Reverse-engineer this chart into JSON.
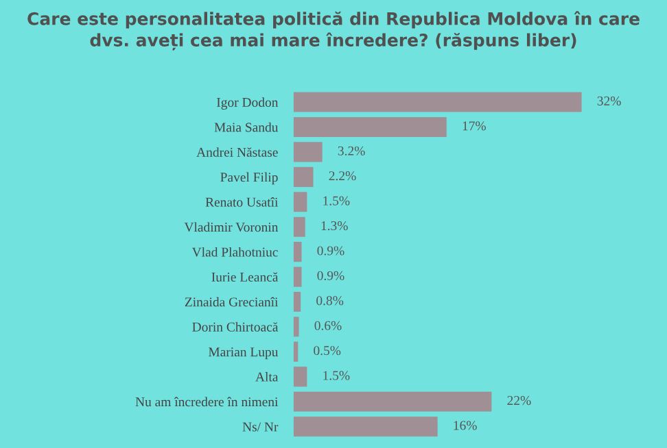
{
  "chart_data": {
    "type": "bar",
    "orientation": "horizontal",
    "title": "Care este personalitatea politică din Republica Moldova în care\ndvs. aveți cea mai mare încredere? (răspuns liber)",
    "categories": [
      "Igor Dodon",
      "Maia Sandu",
      "Andrei Năstase",
      "Pavel Filip",
      "Renato Usatîi",
      "Vladimir Voronin",
      "Vlad Plahotniuc",
      "Iurie Leancă",
      "Zinaida Grecianîi",
      "Dorin Chirtoacă",
      "Marian Lupu",
      "Alta",
      "Nu am încredere în nimeni",
      "Ns/ Nr"
    ],
    "values": [
      32,
      17,
      3.2,
      2.2,
      1.5,
      1.3,
      0.9,
      0.9,
      0.8,
      0.6,
      0.5,
      1.5,
      22,
      16
    ],
    "value_labels": [
      "32%",
      "17%",
      "3.2%",
      "2.2%",
      "1.5%",
      "1.3%",
      "0.9%",
      "0.9%",
      "0.8%",
      "0.6%",
      "0.5%",
      "1.5%",
      "22%",
      "16%"
    ],
    "color": "#a08f95",
    "grid": false,
    "legend": false
  }
}
